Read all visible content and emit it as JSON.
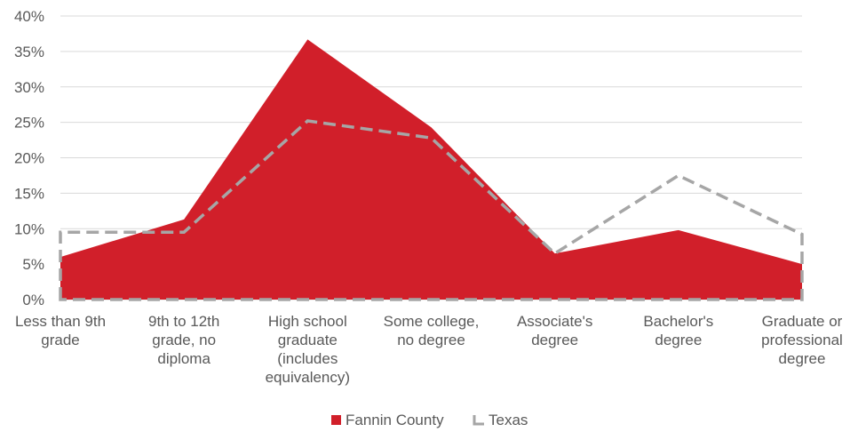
{
  "chart_data": {
    "type": "area",
    "categories": [
      [
        "Less than 9th",
        "grade"
      ],
      [
        "9th to 12th",
        "grade, no",
        "diploma"
      ],
      [
        "High school",
        "graduate",
        "(includes",
        "equivalency)"
      ],
      [
        "Some college,",
        "no degree"
      ],
      [
        "Associate's",
        "degree"
      ],
      [
        "Bachelor's",
        "degree"
      ],
      [
        "Graduate or",
        "professional",
        "degree"
      ]
    ],
    "series": [
      {
        "name": "Fannin County",
        "values": [
          6,
          11.3,
          36.7,
          24.3,
          6.5,
          9.8,
          5.0
        ],
        "color": "#d11f2a",
        "style": "filled-area"
      },
      {
        "name": "Texas",
        "values": [
          9.5,
          9.5,
          25.2,
          22.8,
          6.5,
          17.5,
          9.2
        ],
        "color": "#a6a6a6",
        "style": "dashed-outline-area"
      }
    ],
    "yticks": [
      "0%",
      "5%",
      "10%",
      "15%",
      "20%",
      "25%",
      "30%",
      "35%",
      "40%"
    ],
    "ylim": [
      0,
      40
    ],
    "grid": true,
    "legend_position": "bottom"
  }
}
